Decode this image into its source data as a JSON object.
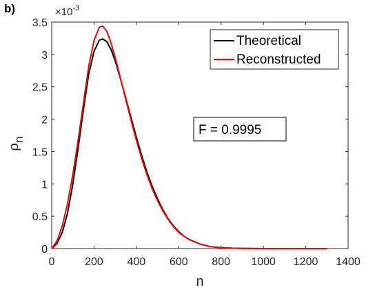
{
  "panel_label": "b)",
  "annotation": "F = 0.9995",
  "colors": {
    "theoretical": "#000000",
    "reconstructed": "#ff0000",
    "axis": "#262626"
  },
  "chart_data": {
    "type": "line",
    "title": "",
    "xlabel": "n",
    "ylabel_main": "ρ",
    "ylabel_sub": "n",
    "y_exponent_label": "×10",
    "y_exponent": "-3",
    "xlim": [
      0,
      1400
    ],
    "ylim": [
      0,
      3.5
    ],
    "x_ticks": [
      0,
      200,
      400,
      600,
      800,
      1000,
      1200,
      1400
    ],
    "x_tick_labels": [
      "0",
      "200",
      "400",
      "600",
      "800",
      "1000",
      "1200",
      "1400"
    ],
    "y_ticks": [
      0,
      0.5,
      1,
      1.5,
      2,
      2.5,
      3,
      3.5
    ],
    "y_tick_labels": [
      "0",
      "0.5",
      "1",
      "1.5",
      "2",
      "2.5",
      "3",
      "3.5"
    ],
    "grid": false,
    "legend_position": "top-right",
    "series": [
      {
        "name": "Theoretical",
        "color": "#000000",
        "x": [
          0,
          25,
          50,
          75,
          100,
          125,
          150,
          175,
          200,
          225,
          240,
          260,
          280,
          300,
          325,
          350,
          375,
          400,
          425,
          450,
          475,
          500,
          525,
          550,
          575,
          600,
          625,
          650,
          700,
          750,
          800,
          850,
          900,
          1000,
          1100,
          1200,
          1300
        ],
        "y": [
          0.0,
          0.08,
          0.25,
          0.55,
          1.0,
          1.55,
          2.15,
          2.7,
          3.05,
          3.22,
          3.24,
          3.2,
          3.08,
          2.9,
          2.62,
          2.32,
          2.02,
          1.72,
          1.44,
          1.18,
          0.96,
          0.77,
          0.6,
          0.46,
          0.35,
          0.26,
          0.19,
          0.14,
          0.07,
          0.03,
          0.015,
          0.007,
          0.003,
          0.0005,
          0.0001,
          0.0,
          0.0
        ]
      },
      {
        "name": "Reconstructed",
        "color": "#ff0000",
        "x": [
          0,
          25,
          50,
          75,
          100,
          125,
          150,
          175,
          200,
          225,
          240,
          260,
          280,
          300,
          325,
          350,
          375,
          400,
          425,
          450,
          475,
          500,
          525,
          550,
          575,
          600,
          625,
          650,
          700,
          750,
          800,
          850,
          900,
          1000,
          1100,
          1200,
          1300
        ],
        "y": [
          0.0,
          0.12,
          0.35,
          0.7,
          1.15,
          1.68,
          2.25,
          2.82,
          3.22,
          3.42,
          3.44,
          3.36,
          3.18,
          2.95,
          2.63,
          2.3,
          1.98,
          1.67,
          1.39,
          1.14,
          0.92,
          0.74,
          0.58,
          0.45,
          0.34,
          0.25,
          0.19,
          0.14,
          0.07,
          0.03,
          0.015,
          0.007,
          0.003,
          0.0005,
          0.0001,
          0.0,
          0.0
        ]
      }
    ]
  }
}
